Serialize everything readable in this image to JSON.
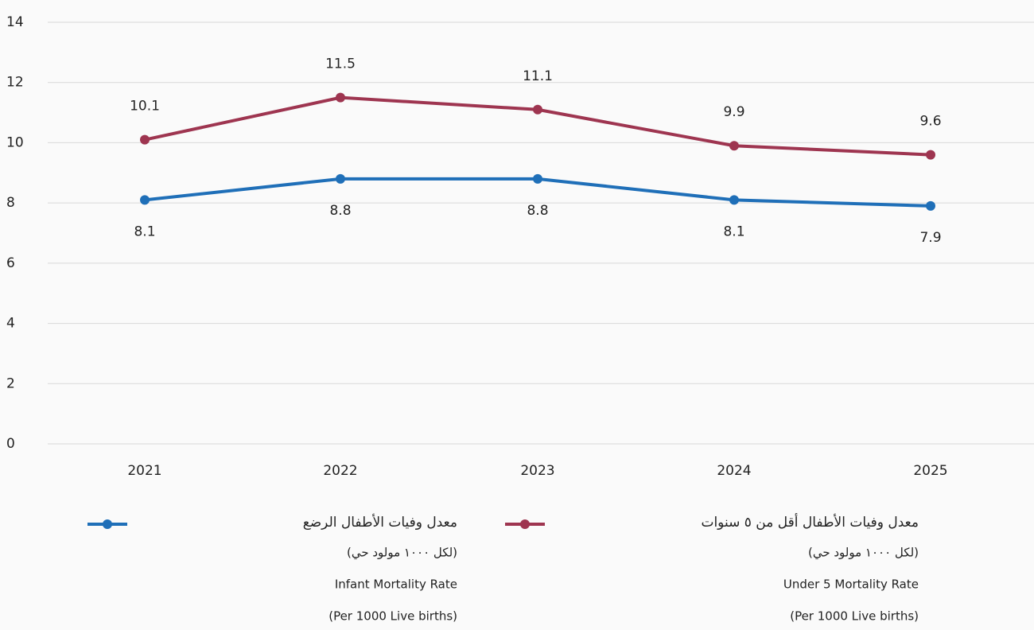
{
  "chart_data": {
    "type": "line",
    "categories": [
      "2021",
      "2022",
      "2023",
      "2024",
      "2025"
    ],
    "series": [
      {
        "name": "معدل وفيات الأطفال أقل من ٥ سنوات",
        "color": "#9e3550",
        "values": [
          10.1,
          11.5,
          11.1,
          9.9,
          9.6
        ],
        "legend_details": [
          "(لكل ١٠٠٠ مولود حي)",
          "Under 5 Mortality Rate",
          "(Per 1000 Live births)"
        ]
      },
      {
        "name": "معدل وفيات الأطفال الرضع",
        "color": "#1f6fb8",
        "values": [
          8.1,
          8.8,
          8.8,
          8.1,
          7.9
        ],
        "legend_details": [
          "(لكل ١٠٠٠ مولود حي)",
          "Infant Mortality Rate",
          "(Per 1000 Live births)"
        ]
      }
    ],
    "ylim": [
      0,
      14
    ],
    "yticks": [
      0,
      2,
      4,
      6,
      8,
      10,
      12,
      14
    ],
    "grid": true
  }
}
